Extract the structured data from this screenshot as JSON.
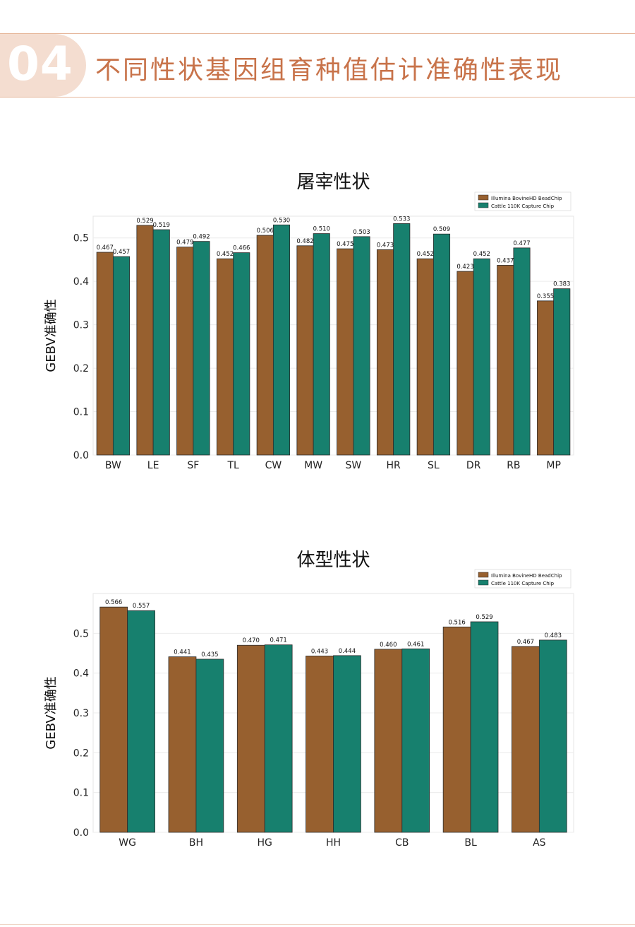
{
  "header": {
    "number": "04",
    "title": "不同性状基因组育种值估计准确性表现"
  },
  "colors": {
    "series1": "#97602f",
    "series2": "#17806e",
    "header_accent": "#c8734a",
    "badge_bg": "#f4ddd0"
  },
  "chart_data": [
    {
      "type": "bar",
      "title": "屠宰性状",
      "ylabel": "GEBV准确性",
      "xlabel": "",
      "ylim": [
        0,
        0.55
      ],
      "yticks": [
        0.0,
        0.1,
        0.2,
        0.3,
        0.4,
        0.5
      ],
      "grid": true,
      "legend": "top-right",
      "categories": [
        "BW",
        "LE",
        "SF",
        "TL",
        "CW",
        "MW",
        "SW",
        "HR",
        "SL",
        "DR",
        "RB",
        "MP"
      ],
      "series": [
        {
          "name": "Illumina BovineHD BeadChip",
          "values": [
            0.467,
            0.529,
            0.479,
            0.452,
            0.506,
            0.482,
            0.475,
            0.473,
            0.452,
            0.423,
            0.437,
            0.355
          ]
        },
        {
          "name": "Cattle 110K Capture Chip",
          "values": [
            0.457,
            0.519,
            0.492,
            0.466,
            0.53,
            0.51,
            0.503,
            0.533,
            0.509,
            0.452,
            0.477,
            0.383
          ]
        }
      ]
    },
    {
      "type": "bar",
      "title": "体型性状",
      "ylabel": "GEBV准确性",
      "xlabel": "",
      "ylim": [
        0,
        0.6
      ],
      "yticks": [
        0.0,
        0.1,
        0.2,
        0.3,
        0.4,
        0.5
      ],
      "grid": true,
      "legend": "top-right",
      "categories": [
        "WG",
        "BH",
        "HG",
        "HH",
        "CB",
        "BL",
        "AS"
      ],
      "series": [
        {
          "name": "Illumina BovineHD BeadChip",
          "values": [
            0.566,
            0.441,
            0.47,
            0.443,
            0.46,
            0.516,
            0.467
          ]
        },
        {
          "name": "Cattle 110K Capture Chip",
          "values": [
            0.557,
            0.435,
            0.471,
            0.444,
            0.461,
            0.529,
            0.483
          ]
        }
      ]
    }
  ]
}
